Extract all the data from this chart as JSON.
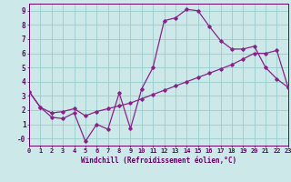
{
  "xlabel": "Windchill (Refroidissement éolien,°C)",
  "line1_x": [
    0,
    1,
    2,
    3,
    4,
    5,
    6,
    7,
    8,
    9,
    10,
    11,
    12,
    13,
    14,
    15,
    16,
    17,
    18,
    19,
    20,
    21,
    22,
    23
  ],
  "line1_y": [
    3.3,
    2.2,
    1.5,
    1.4,
    1.8,
    -0.2,
    1.0,
    0.65,
    3.2,
    0.7,
    3.5,
    5.0,
    8.3,
    8.5,
    9.1,
    9.0,
    7.9,
    6.9,
    6.3,
    6.3,
    6.5,
    5.0,
    4.2,
    3.6
  ],
  "line2_x": [
    0,
    1,
    2,
    3,
    4,
    5,
    6,
    7,
    8,
    9,
    10,
    11,
    12,
    13,
    14,
    15,
    16,
    17,
    18,
    19,
    20,
    21,
    22,
    23
  ],
  "line2_y": [
    3.3,
    2.2,
    1.8,
    1.9,
    2.1,
    1.6,
    1.9,
    2.1,
    2.3,
    2.5,
    2.8,
    3.1,
    3.4,
    3.7,
    4.0,
    4.3,
    4.6,
    4.9,
    5.2,
    5.6,
    6.0,
    6.0,
    6.2,
    3.6
  ],
  "line_color": "#882288",
  "bg_color": "#cce8e8",
  "grid_color": "#99cccc",
  "axis_color": "#660066",
  "tick_color": "#660066",
  "xlim": [
    0,
    23
  ],
  "ylim": [
    -0.5,
    9.5
  ],
  "xticks": [
    0,
    1,
    2,
    3,
    4,
    5,
    6,
    7,
    8,
    9,
    10,
    11,
    12,
    13,
    14,
    15,
    16,
    17,
    18,
    19,
    20,
    21,
    22,
    23
  ],
  "yticks": [
    0,
    1,
    2,
    3,
    4,
    5,
    6,
    7,
    8,
    9
  ],
  "ytick_labels": [
    "-0",
    "1",
    "2",
    "3",
    "4",
    "5",
    "6",
    "7",
    "8",
    "9"
  ],
  "xtick_fontsize": 5.0,
  "ytick_fontsize": 5.5,
  "xlabel_fontsize": 5.5,
  "marker": "D",
  "markersize": 1.8,
  "linewidth": 0.9
}
